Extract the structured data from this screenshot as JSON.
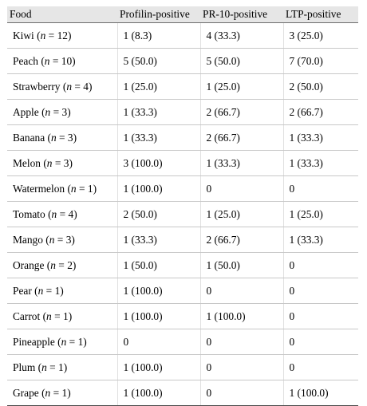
{
  "table": {
    "headers": [
      "Food",
      "Profilin-positive",
      "PR-10-positive",
      "LTP-positive"
    ],
    "rows": [
      {
        "food": "Kiwi",
        "n": "12",
        "profilin": "1 (8.3)",
        "pr10": "4 (33.3)",
        "ltp": "3 (25.0)"
      },
      {
        "food": "Peach",
        "n": "10",
        "profilin": "5 (50.0)",
        "pr10": "5 (50.0)",
        "ltp": "7 (70.0)"
      },
      {
        "food": "Strawberry",
        "n": "4",
        "profilin": "1 (25.0)",
        "pr10": "1 (25.0)",
        "ltp": "2 (50.0)"
      },
      {
        "food": "Apple",
        "n": "3",
        "profilin": "1 (33.3)",
        "pr10": "2 (66.7)",
        "ltp": "2 (66.7)"
      },
      {
        "food": "Banana",
        "n": "3",
        "profilin": "1 (33.3)",
        "pr10": "2 (66.7)",
        "ltp": "1 (33.3)"
      },
      {
        "food": "Melon",
        "n": "3",
        "profilin": "3 (100.0)",
        "pr10": "1 (33.3)",
        "ltp": "1 (33.3)"
      },
      {
        "food": "Watermelon",
        "n": "1",
        "profilin": "1 (100.0)",
        "pr10": "0",
        "ltp": "0"
      },
      {
        "food": "Tomato",
        "n": "4",
        "profilin": "2 (50.0)",
        "pr10": "1 (25.0)",
        "ltp": "1 (25.0)"
      },
      {
        "food": "Mango",
        "n": "3",
        "profilin": "1 (33.3)",
        "pr10": "2 (66.7)",
        "ltp": "1 (33.3)"
      },
      {
        "food": "Orange",
        "n": "2",
        "profilin": "1 (50.0)",
        "pr10": "1 (50.0)",
        "ltp": "0"
      },
      {
        "food": "Pear",
        "n": "1",
        "profilin": "1 (100.0)",
        "pr10": "0",
        "ltp": "0"
      },
      {
        "food": "Carrot",
        "n": "1",
        "profilin": "1 (100.0)",
        "pr10": "1 (100.0)",
        "ltp": "0"
      },
      {
        "food": "Pineapple",
        "n": "1",
        "profilin": "0",
        "pr10": "0",
        "ltp": "0"
      },
      {
        "food": "Plum",
        "n": "1",
        "profilin": "1 (100.0)",
        "pr10": "0",
        "ltp": "0"
      },
      {
        "food": "Grape",
        "n": "1",
        "profilin": "1 (100.0)",
        "pr10": "0",
        "ltp": "1 (100.0)"
      }
    ]
  }
}
